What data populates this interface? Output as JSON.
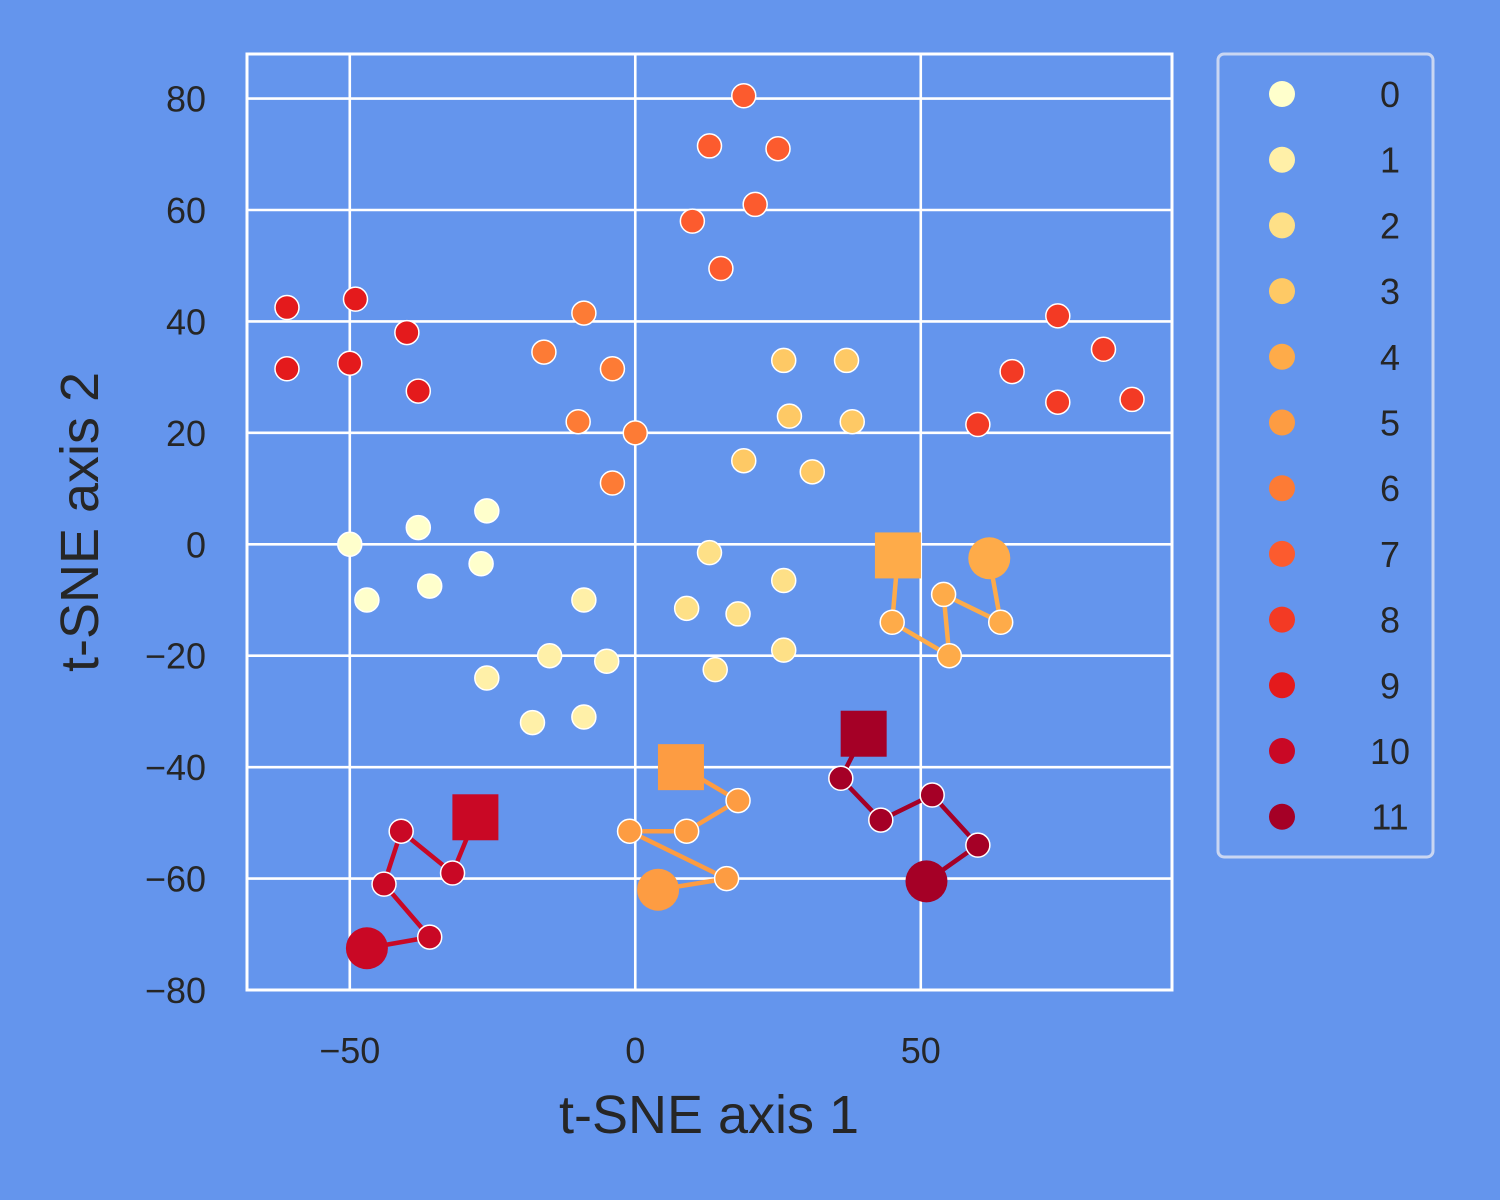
{
  "chart_data": {
    "type": "scatter",
    "xlabel": "t-SNE axis 1",
    "ylabel": "t-SNE axis 2",
    "xlim": [
      -68,
      94
    ],
    "ylim": [
      -80,
      88
    ],
    "xticks": [
      -50,
      0,
      50
    ],
    "yticks": [
      -80,
      -60,
      -40,
      -20,
      0,
      20,
      40,
      60,
      80
    ],
    "grid": true,
    "legend": {
      "placement": "outside-right"
    },
    "series": [
      {
        "name": "0",
        "color": "#ffffcc",
        "points": [
          [
            -50,
            0
          ],
          [
            -47,
            -10
          ],
          [
            -38,
            3
          ],
          [
            -36,
            -7.5
          ],
          [
            -27,
            -3.5
          ],
          [
            -26,
            6
          ]
        ]
      },
      {
        "name": "1",
        "color": "#fff0a8",
        "points": [
          [
            -26,
            -24
          ],
          [
            -18,
            -32
          ],
          [
            -15,
            -20
          ],
          [
            -9,
            -10
          ],
          [
            -9,
            -31
          ],
          [
            -5,
            -21
          ]
        ]
      },
      {
        "name": "2",
        "color": "#fee087",
        "points": [
          [
            9,
            -11.5
          ],
          [
            13,
            -1.5
          ],
          [
            14,
            -22.5
          ],
          [
            18,
            -12.5
          ],
          [
            26,
            -6.5
          ],
          [
            26,
            -19
          ]
        ]
      },
      {
        "name": "3",
        "color": "#fec965",
        "points": [
          [
            19,
            15
          ],
          [
            26,
            33
          ],
          [
            27,
            23
          ],
          [
            31,
            13
          ],
          [
            37,
            33
          ],
          [
            38,
            22
          ]
        ]
      },
      {
        "name": "4",
        "color": "#feab49",
        "points": [
          [
            62,
            -2.5
          ],
          [
            64,
            -14
          ],
          [
            54,
            -9
          ],
          [
            55,
            -20
          ],
          [
            45,
            -14
          ],
          [
            46,
            -2
          ]
        ]
      },
      {
        "name": "5",
        "color": "#fd9c42",
        "points": [
          [
            4,
            -62
          ],
          [
            16,
            -60
          ],
          [
            -1,
            -51.5
          ],
          [
            9,
            -51.5
          ],
          [
            18,
            -46
          ],
          [
            8,
            -40
          ]
        ]
      },
      {
        "name": "6",
        "color": "#fd7b35",
        "points": [
          [
            -16,
            34.5
          ],
          [
            -10,
            22
          ],
          [
            -9,
            41.5
          ],
          [
            -4,
            11
          ],
          [
            -4,
            31.5
          ],
          [
            0,
            20
          ]
        ]
      },
      {
        "name": "7",
        "color": "#fc5b2e",
        "points": [
          [
            10,
            58
          ],
          [
            13,
            71.5
          ],
          [
            15,
            49.5
          ],
          [
            19,
            80.5
          ],
          [
            21,
            61
          ],
          [
            25,
            71
          ]
        ]
      },
      {
        "name": "8",
        "color": "#f33a24",
        "points": [
          [
            60,
            21.5
          ],
          [
            66,
            31
          ],
          [
            74,
            41
          ],
          [
            74,
            25.5
          ],
          [
            82,
            35
          ],
          [
            87,
            26
          ]
        ]
      },
      {
        "name": "9",
        "color": "#e41a1c",
        "points": [
          [
            -61,
            42.5
          ],
          [
            -61,
            31.5
          ],
          [
            -50,
            32.5
          ],
          [
            -49,
            44
          ],
          [
            -40,
            38
          ],
          [
            -38,
            27.5
          ]
        ]
      },
      {
        "name": "10",
        "color": "#c90825",
        "points": [
          [
            -47,
            -72.5
          ],
          [
            -36,
            -70.5
          ],
          [
            -44,
            -61
          ],
          [
            -41,
            -51.5
          ],
          [
            -32,
            -59
          ],
          [
            -28,
            -49
          ]
        ]
      },
      {
        "name": "11",
        "color": "#a50026",
        "points": [
          [
            51,
            -60.5
          ],
          [
            60,
            -54
          ],
          [
            52,
            -45
          ],
          [
            43,
            -49.5
          ],
          [
            36,
            -42
          ],
          [
            40,
            -34
          ]
        ]
      }
    ],
    "trajectories": [
      {
        "series": "4",
        "color": "#feab49",
        "points": [
          [
            62,
            -2.5
          ],
          [
            64,
            -14
          ],
          [
            54,
            -9
          ],
          [
            55,
            -20
          ],
          [
            45,
            -14
          ],
          [
            46,
            -2
          ]
        ]
      },
      {
        "series": "5",
        "color": "#fd9c42",
        "points": [
          [
            4,
            -62
          ],
          [
            16,
            -60
          ],
          [
            -1,
            -51.5
          ],
          [
            9,
            -51.5
          ],
          [
            18,
            -46
          ],
          [
            8,
            -40
          ]
        ]
      },
      {
        "series": "10",
        "color": "#c90825",
        "points": [
          [
            -47,
            -72.5
          ],
          [
            -36,
            -70.5
          ],
          [
            -44,
            -61
          ],
          [
            -41,
            -51.5
          ],
          [
            -32,
            -59
          ],
          [
            -28,
            -49
          ]
        ]
      },
      {
        "series": "11",
        "color": "#a50026",
        "points": [
          [
            51,
            -60.5
          ],
          [
            60,
            -54
          ],
          [
            52,
            -45
          ],
          [
            43,
            -49.5
          ],
          [
            36,
            -42
          ],
          [
            40,
            -34
          ]
        ]
      }
    ]
  }
}
